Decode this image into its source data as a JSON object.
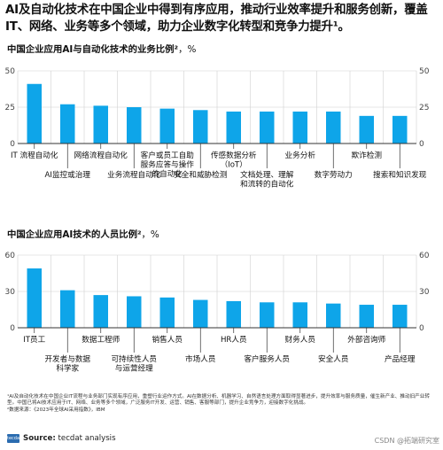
{
  "headline": "AI及自动化技术在中国企业中得到有序应用，推动行业效率提升和服务创新，覆盖IT、网络、业务等多个领域，助力企业数字化转型和竞争力提升¹。",
  "source": {
    "logo_text": "tecdat",
    "label": "Source:",
    "text": "tecdat analysis"
  },
  "watermark": "CSDN @拓端研究室",
  "notes": [
    "¹AI及自动化技术在中国企业IT流程与业务部门实现有序应用，重塑行业运作方式。AI在数据分析、机器学习、自然语言处理方面取得显著进步，提升效率与服务质量，催生新产业、推动旧产业转型。中国已将AI技术应用于IT、网络、业务等多个领域，广泛服务IT开发、运营、销售、客服等部门，提升企业竞争力，迎接数字化挑战。",
    "²数据来源：《2023年全球AI采用指数》，IBM"
  ],
  "colors": {
    "bar": "#0ea5e9",
    "grid": "#d0d0d0",
    "axis": "#333333"
  },
  "chart_data": [
    {
      "type": "bar",
      "title": "中国企业应用AI与自动化技术的业务比例²",
      "unit": "，%",
      "ylim": [
        0,
        50
      ],
      "yticks": [
        0,
        25,
        50
      ],
      "grid": true,
      "categories": [
        "IT 流程自动化",
        "AI监控或治理",
        "网络流程自动化",
        "业务流程自动化",
        "客户或员工自助服务应答与操作的自动化",
        "安全和威胁检测",
        "传感数据分析（IoT）",
        "文档处理、理解和流转的自动化",
        "业务分析",
        "数字劳动力",
        "欺诈检测",
        "搜索和知识发现"
      ],
      "label_lines": [
        [
          "IT 流程自动化"
        ],
        [
          "AI监控或治理"
        ],
        [
          "网络流程自动化"
        ],
        [
          "业务流程自动化"
        ],
        [
          "客户或员工自助",
          "服务应答与操作",
          "的自动化"
        ],
        [
          "安全和威胁检测"
        ],
        [
          "传感数据分析",
          "（IoT）"
        ],
        [
          "文档处理、理解",
          "和流转的自动化"
        ],
        [
          "业务分析"
        ],
        [
          "数字劳动力"
        ],
        [
          "欺诈检测"
        ],
        [
          "搜索和知识发现"
        ]
      ],
      "label_rows": [
        0,
        1,
        0,
        1,
        0,
        1,
        0,
        1,
        0,
        1,
        0,
        1
      ],
      "values": [
        41,
        27,
        26,
        25,
        24,
        23,
        22,
        22,
        22,
        22,
        19,
        19
      ]
    },
    {
      "type": "bar",
      "title": "中国企业应用AI技术的人员比例²",
      "unit": "，%",
      "ylim": [
        0,
        60
      ],
      "yticks": [
        0,
        30,
        60
      ],
      "grid": true,
      "categories": [
        "IT员工",
        "开发者与数据科学家",
        "数据工程师",
        "可持续性人员与运营经理",
        "销售人员",
        "市场人员",
        "HR人员",
        "客户服务人员",
        "财务人员",
        "安全人员",
        "外部咨询师",
        "产品经理"
      ],
      "label_lines": [
        [
          "IT员工"
        ],
        [
          "开发者与数据",
          "科学家"
        ],
        [
          "数据工程师"
        ],
        [
          "可持续性人员",
          "与运营经理"
        ],
        [
          "销售人员"
        ],
        [
          "市场人员"
        ],
        [
          "HR人员"
        ],
        [
          "客户服务人员"
        ],
        [
          "财务人员"
        ],
        [
          "安全人员"
        ],
        [
          "外部咨询师"
        ],
        [
          "产品经理"
        ]
      ],
      "label_rows": [
        0,
        1,
        0,
        1,
        0,
        1,
        0,
        1,
        0,
        1,
        0,
        1
      ],
      "values": [
        49,
        31,
        27,
        26,
        25,
        23,
        22,
        21,
        21,
        20,
        19,
        19
      ]
    }
  ]
}
